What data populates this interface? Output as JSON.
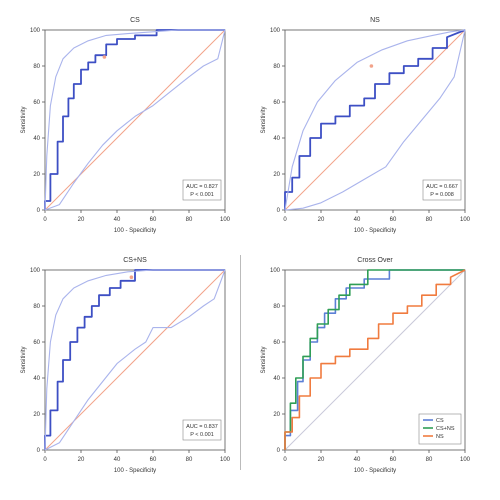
{
  "colors": {
    "roc": "#3d4fc4",
    "ci": "#aab4ec",
    "diagonal": "#f2a38a",
    "axis": "#555555",
    "compare": [
      "#5b7fd6",
      "#2f9e56",
      "#f07b3f"
    ]
  },
  "chart_data": [
    {
      "type": "line",
      "title": "CS",
      "xlabel": "100 - Specificity",
      "ylabel": "Sensitivity",
      "xlim": [
        0,
        100
      ],
      "ylim": [
        0,
        100
      ],
      "xticks": [
        "0",
        "20",
        "40",
        "60",
        "80",
        "100"
      ],
      "yticks": [
        "0",
        "20",
        "40",
        "60",
        "80",
        "100"
      ],
      "grid": false,
      "annotation": [
        "AUC = 0.827",
        "P < 0.001"
      ],
      "series": [
        {
          "x": [
            0,
            0,
            3,
            3,
            7,
            7,
            10,
            10,
            13,
            13,
            16,
            16,
            20,
            20,
            24,
            24,
            28,
            28,
            34,
            34,
            40,
            40,
            50,
            50,
            62,
            62,
            100
          ],
          "y": [
            0,
            5,
            5,
            20,
            20,
            38,
            38,
            52,
            52,
            62,
            62,
            70,
            70,
            78,
            78,
            82,
            82,
            86,
            86,
            92,
            92,
            95,
            95,
            97,
            97,
            100,
            100
          ]
        },
        {
          "x": [
            0,
            1,
            3,
            6,
            10,
            16,
            24,
            34,
            46,
            60,
            74,
            88,
            100
          ],
          "y": [
            0,
            30,
            58,
            74,
            84,
            90,
            94,
            97,
            98,
            99,
            100,
            100,
            100
          ]
        },
        {
          "x": [
            0,
            8,
            16,
            24,
            32,
            40,
            50,
            60,
            70,
            80,
            88,
            96,
            100
          ],
          "y": [
            0,
            3,
            15,
            26,
            36,
            44,
            52,
            58,
            66,
            74,
            80,
            84,
            100
          ]
        }
      ],
      "point": {
        "x": 33,
        "y": 85
      }
    },
    {
      "type": "line",
      "title": "NS",
      "xlabel": "100 - Specificity",
      "ylabel": "Sensitivity",
      "xlim": [
        0,
        100
      ],
      "ylim": [
        0,
        100
      ],
      "xticks": [
        "0",
        "20",
        "40",
        "60",
        "80",
        "100"
      ],
      "yticks": [
        "0",
        "20",
        "40",
        "60",
        "80",
        "100"
      ],
      "grid": false,
      "annotation": [
        "AUC = 0.667",
        "P = 0.008"
      ],
      "series": [
        {
          "x": [
            0,
            0,
            4,
            4,
            8,
            8,
            14,
            14,
            20,
            20,
            28,
            28,
            36,
            36,
            44,
            44,
            50,
            50,
            58,
            58,
            66,
            66,
            74,
            74,
            82,
            82,
            90,
            90,
            100
          ],
          "y": [
            0,
            10,
            10,
            18,
            18,
            30,
            30,
            40,
            40,
            48,
            48,
            52,
            52,
            58,
            58,
            62,
            62,
            70,
            70,
            76,
            76,
            80,
            80,
            84,
            84,
            90,
            90,
            96,
            100
          ]
        },
        {
          "x": [
            0,
            4,
            10,
            18,
            28,
            40,
            54,
            68,
            82,
            92,
            100
          ],
          "y": [
            0,
            24,
            44,
            60,
            72,
            82,
            89,
            94,
            97,
            99,
            100
          ]
        },
        {
          "x": [
            0,
            10,
            20,
            32,
            44,
            56,
            66,
            76,
            86,
            94,
            100
          ],
          "y": [
            0,
            1,
            4,
            10,
            17,
            24,
            38,
            50,
            62,
            74,
            100
          ]
        }
      ],
      "point": {
        "x": 48,
        "y": 80
      }
    },
    {
      "type": "line",
      "title": "CS+NS",
      "xlabel": "100 - Specificity",
      "ylabel": "Sensitivity",
      "xlim": [
        0,
        100
      ],
      "ylim": [
        0,
        100
      ],
      "xticks": [
        "0",
        "20",
        "40",
        "60",
        "80",
        "100"
      ],
      "yticks": [
        "0",
        "20",
        "40",
        "60",
        "80",
        "100"
      ],
      "grid": false,
      "annotation": [
        "AUC = 0.837",
        "P < 0.001"
      ],
      "series": [
        {
          "x": [
            0,
            0,
            3,
            3,
            7,
            7,
            10,
            10,
            14,
            14,
            18,
            18,
            22,
            22,
            26,
            26,
            30,
            30,
            36,
            36,
            42,
            42,
            50,
            50,
            100
          ],
          "y": [
            0,
            8,
            8,
            22,
            22,
            38,
            38,
            50,
            50,
            60,
            60,
            68,
            68,
            74,
            74,
            80,
            80,
            86,
            86,
            90,
            90,
            94,
            94,
            100,
            100
          ]
        },
        {
          "x": [
            0,
            1,
            3,
            6,
            10,
            16,
            24,
            34,
            46,
            60,
            74,
            88,
            100
          ],
          "y": [
            0,
            34,
            60,
            75,
            84,
            90,
            94,
            97,
            99,
            100,
            100,
            100,
            100
          ]
        },
        {
          "x": [
            0,
            8,
            16,
            24,
            32,
            40,
            50,
            56,
            60,
            70,
            80,
            88,
            94,
            100
          ],
          "y": [
            0,
            4,
            16,
            28,
            38,
            48,
            56,
            60,
            68,
            68,
            74,
            80,
            84,
            100
          ]
        }
      ],
      "point": {
        "x": 48,
        "y": 96
      }
    },
    {
      "type": "line",
      "title": "Cross Over",
      "xlabel": "100 - Specificity",
      "ylabel": "Sensitivity",
      "xlim": [
        0,
        100
      ],
      "ylim": [
        0,
        100
      ],
      "xticks": [
        "0",
        "20",
        "40",
        "60",
        "80",
        "100"
      ],
      "yticks": [
        "0",
        "20",
        "40",
        "60",
        "80",
        "100"
      ],
      "grid": false,
      "legend": "bottom-right",
      "series": [
        {
          "name": "CS",
          "x": [
            0,
            0,
            3,
            3,
            7,
            7,
            10,
            10,
            14,
            14,
            18,
            18,
            22,
            22,
            28,
            28,
            34,
            34,
            44,
            44,
            58,
            58,
            100
          ],
          "y": [
            0,
            8,
            8,
            22,
            22,
            38,
            38,
            50,
            50,
            60,
            60,
            68,
            68,
            76,
            76,
            84,
            84,
            90,
            90,
            95,
            95,
            100,
            100
          ]
        },
        {
          "name": "CS+NS",
          "x": [
            0,
            0,
            3,
            3,
            6,
            6,
            10,
            10,
            14,
            14,
            18,
            18,
            24,
            24,
            30,
            30,
            36,
            36,
            46,
            46,
            100
          ],
          "y": [
            0,
            10,
            10,
            26,
            26,
            40,
            40,
            52,
            52,
            62,
            62,
            70,
            70,
            78,
            78,
            86,
            86,
            92,
            92,
            100,
            100
          ]
        },
        {
          "name": "NS",
          "x": [
            0,
            0,
            4,
            4,
            8,
            8,
            14,
            14,
            20,
            20,
            28,
            28,
            36,
            36,
            46,
            46,
            52,
            52,
            60,
            60,
            68,
            68,
            76,
            76,
            84,
            84,
            92,
            92,
            100
          ],
          "y": [
            0,
            10,
            10,
            18,
            18,
            30,
            30,
            40,
            40,
            48,
            48,
            52,
            52,
            56,
            56,
            62,
            62,
            70,
            70,
            76,
            76,
            80,
            80,
            86,
            86,
            92,
            92,
            96,
            100
          ]
        }
      ]
    }
  ]
}
